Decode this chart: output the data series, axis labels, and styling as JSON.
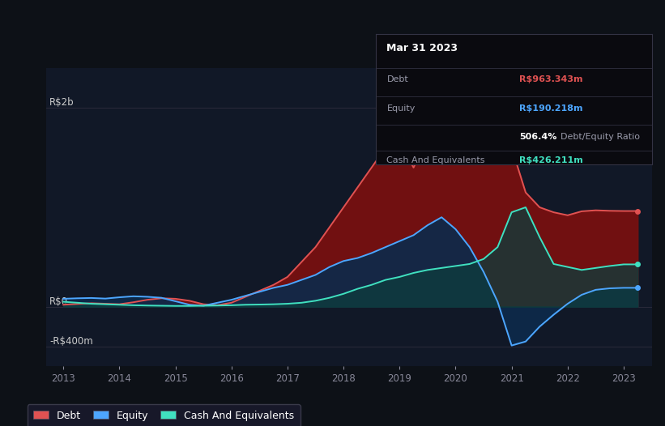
{
  "bg_color": "#0d1117",
  "plot_bg_color": "#111827",
  "debt_color": "#e05252",
  "equity_color": "#4da6ff",
  "cash_color": "#40e0c0",
  "debt_fill": "#7a1010",
  "equity_fill": "#0d2a4a",
  "cash_fill": "#0d3d3d",
  "grid_color": "#2a2a3a",
  "tick_color": "#888899",
  "label_color": "#cccccc",
  "tooltip_bg": "#0a0a0f",
  "tooltip_border": "#333344",
  "title_date": "Mar 31 2023",
  "debt_label": "Debt",
  "equity_label": "Equity",
  "cash_label": "Cash And Equivalents",
  "debt_val": "R$963.343m",
  "equity_val": "R$190.218m",
  "ratio_bold": "506.4%",
  "ratio_text": " Debt/Equity Ratio",
  "cash_val": "R$426.211m",
  "y_top_label": "R$2b",
  "y_mid_label": "R$0",
  "y_bot_label": "-R$400m",
  "ylim": [
    -600,
    2400
  ],
  "xlim": [
    2012.7,
    2023.5
  ],
  "t": [
    2013.0,
    2013.25,
    2013.5,
    2013.75,
    2014.0,
    2014.25,
    2014.5,
    2014.75,
    2015.0,
    2015.25,
    2015.5,
    2015.75,
    2016.0,
    2016.25,
    2016.5,
    2016.75,
    2017.0,
    2017.25,
    2017.5,
    2017.75,
    2018.0,
    2018.25,
    2018.5,
    2018.75,
    2019.0,
    2019.25,
    2019.5,
    2019.75,
    2020.0,
    2020.25,
    2020.5,
    2020.75,
    2021.0,
    2021.25,
    2021.5,
    2021.75,
    2022.0,
    2022.25,
    2022.5,
    2022.75,
    2023.0,
    2023.25
  ],
  "debt": [
    20,
    28,
    35,
    30,
    25,
    45,
    70,
    85,
    80,
    60,
    25,
    15,
    40,
    100,
    160,
    220,
    300,
    450,
    600,
    800,
    1000,
    1200,
    1400,
    1600,
    1650,
    1400,
    1700,
    1900,
    1950,
    1800,
    1850,
    1950,
    1600,
    1150,
    1000,
    950,
    920,
    960,
    970,
    965,
    963,
    963
  ],
  "equity": [
    80,
    85,
    88,
    82,
    95,
    105,
    100,
    90,
    55,
    20,
    10,
    40,
    70,
    110,
    150,
    190,
    220,
    270,
    320,
    400,
    460,
    490,
    540,
    600,
    660,
    720,
    820,
    900,
    780,
    600,
    350,
    50,
    -390,
    -350,
    -200,
    -80,
    30,
    120,
    170,
    185,
    190,
    190
  ],
  "cash": [
    50,
    40,
    30,
    25,
    20,
    15,
    12,
    10,
    8,
    8,
    10,
    12,
    15,
    20,
    22,
    25,
    30,
    40,
    60,
    90,
    130,
    180,
    220,
    270,
    300,
    340,
    370,
    390,
    410,
    430,
    480,
    600,
    950,
    1000,
    700,
    430,
    400,
    370,
    390,
    410,
    426,
    426
  ]
}
